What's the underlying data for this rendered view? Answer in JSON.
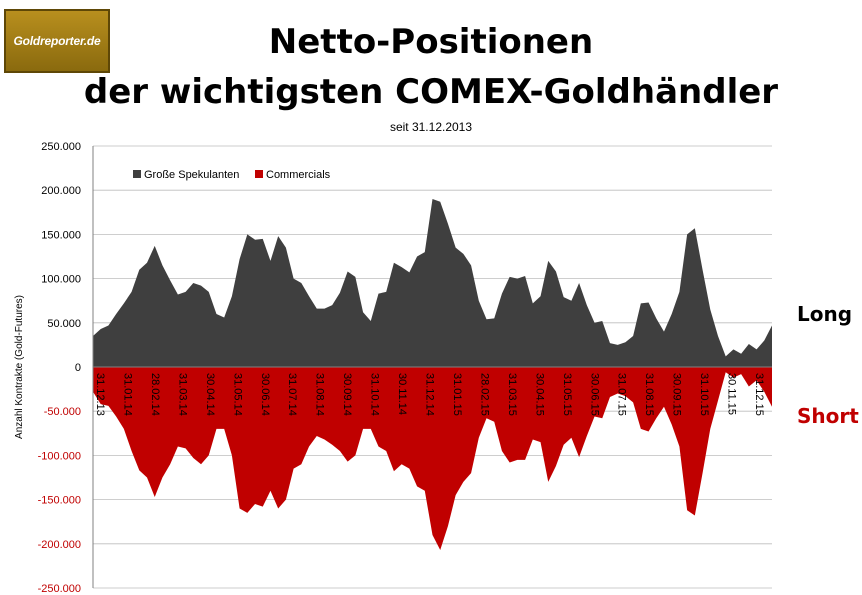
{
  "logo": {
    "text": "Goldreporter.de"
  },
  "title_line1": "Netto-Positionen",
  "title_line2": "der wichtigsten COMEX-Goldhändler",
  "subtitle": "seit 31.12.2013",
  "label_long": "Long",
  "label_short": "Short",
  "colors": {
    "long": "#3f3f3f",
    "short": "#c00000",
    "short_tick_text": "#c00000"
  },
  "chart_data": {
    "type": "area",
    "ylabel": "Anzahl Kontrakte (Gold-Futures)",
    "ylim": [
      -250000,
      250000
    ],
    "yticks": [
      250000,
      200000,
      150000,
      100000,
      50000,
      0,
      -50000,
      -100000,
      -150000,
      -200000,
      -250000
    ],
    "ytick_labels": [
      "250.000",
      "200.000",
      "150.000",
      "100.000",
      "50.000",
      "0",
      "-50.000",
      "-100.000",
      "-150.000",
      "-200.000",
      "-250.000"
    ],
    "grid": true,
    "legend_position": "top-left",
    "x_tick_labels": [
      "31.12.13",
      "31.01.14",
      "28.02.14",
      "31.03.14",
      "30.04.14",
      "31.05.14",
      "30.06.14",
      "31.07.14",
      "31.08.14",
      "30.09.14",
      "31.10.14",
      "30.11.14",
      "31.12.14",
      "31.01.15",
      "28.02.15",
      "31.03.15",
      "30.04.15",
      "31.05.15",
      "30.06.15",
      "31.07.15",
      "31.08.15",
      "30.09.15",
      "31.10.15",
      "30.11.15",
      "31.12.15"
    ],
    "series": [
      {
        "name": "Große Spekulanten",
        "color": "#3f3f3f",
        "values": [
          35000,
          43000,
          47000,
          60000,
          72000,
          85000,
          110000,
          118000,
          137000,
          115000,
          98000,
          82000,
          85000,
          95000,
          92000,
          85000,
          60000,
          56000,
          80000,
          122000,
          150000,
          144000,
          145000,
          120000,
          148000,
          135000,
          100000,
          95000,
          80000,
          66000,
          66000,
          70000,
          84000,
          108000,
          102000,
          62000,
          52000,
          83000,
          85000,
          118000,
          113000,
          107000,
          125000,
          130000,
          190000,
          187000,
          162000,
          135000,
          128000,
          115000,
          75000,
          54000,
          55000,
          83000,
          102000,
          100000,
          103000,
          72000,
          80000,
          120000,
          108000,
          79000,
          75000,
          95000,
          70000,
          50000,
          52000,
          27000,
          25000,
          28000,
          35000,
          72000,
          73000,
          55000,
          40000,
          60000,
          85000,
          150000,
          157000,
          110000,
          65000,
          35000,
          12000,
          20000,
          15000,
          26000,
          20000,
          30000,
          47000
        ],
        "negative": false
      },
      {
        "name": "Commercials",
        "color": "#c00000",
        "values": [
          -28000,
          -42000,
          -44000,
          -56000,
          -70000,
          -95000,
          -117000,
          -125000,
          -147000,
          -125000,
          -110000,
          -90000,
          -92000,
          -103000,
          -110000,
          -100000,
          -70000,
          -70000,
          -100000,
          -160000,
          -165000,
          -155000,
          -158000,
          -140000,
          -160000,
          -150000,
          -115000,
          -110000,
          -90000,
          -78000,
          -82000,
          -88000,
          -95000,
          -107000,
          -100000,
          -70000,
          -70000,
          -90000,
          -95000,
          -118000,
          -110000,
          -115000,
          -135000,
          -140000,
          -190000,
          -207000,
          -180000,
          -145000,
          -130000,
          -120000,
          -80000,
          -58000,
          -62000,
          -95000,
          -108000,
          -105000,
          -105000,
          -82000,
          -85000,
          -130000,
          -112000,
          -88000,
          -80000,
          -102000,
          -78000,
          -56000,
          -58000,
          -34000,
          -30000,
          -33000,
          -40000,
          -70000,
          -73000,
          -58000,
          -45000,
          -65000,
          -90000,
          -162000,
          -168000,
          -120000,
          -70000,
          -38000,
          -6000,
          -12000,
          -8000,
          -22000,
          -15000,
          -28000,
          -45000
        ]
      }
    ]
  }
}
